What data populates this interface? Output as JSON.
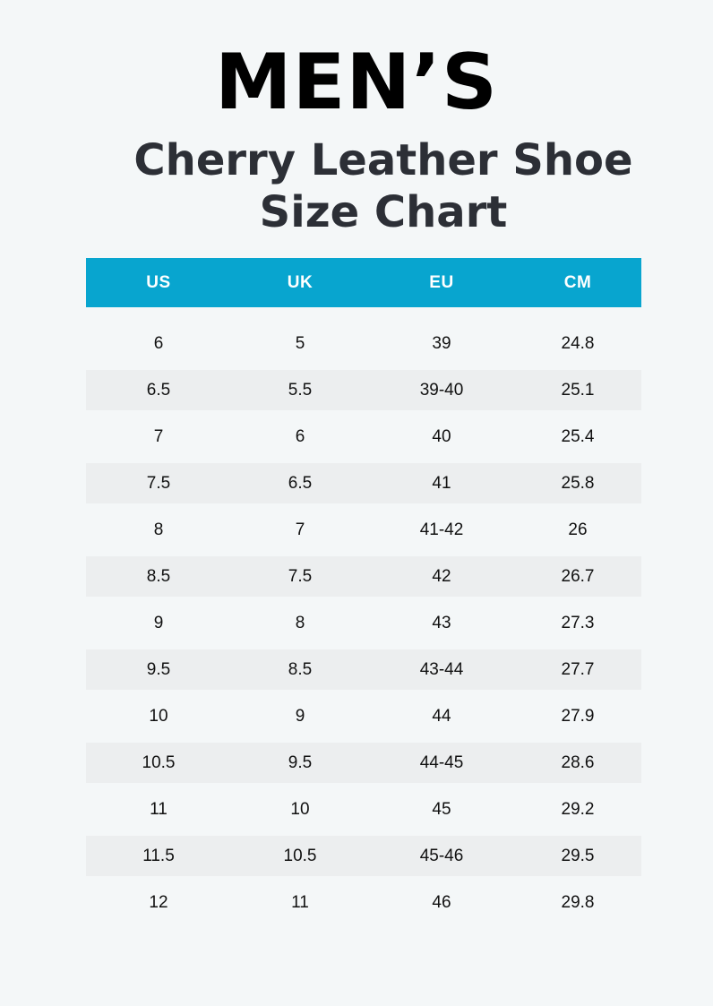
{
  "title": "MEN’S",
  "subtitle": {
    "line1": "Cherry Leather Shoe",
    "line2": "Size Chart"
  },
  "colors": {
    "header_bg": "#08a5cf",
    "page_bg": "#f4f7f8",
    "alt_row_bg": "#eceeef"
  },
  "table": {
    "headers": [
      "US",
      "UK",
      "EU",
      "CM"
    ],
    "rows": [
      [
        "6",
        "5",
        "39",
        "24.8"
      ],
      [
        "6.5",
        "5.5",
        "39-40",
        "25.1"
      ],
      [
        "7",
        "6",
        "40",
        "25.4"
      ],
      [
        "7.5",
        "6.5",
        "41",
        "25.8"
      ],
      [
        "8",
        "7",
        "41-42",
        "26"
      ],
      [
        "8.5",
        "7.5",
        "42",
        "26.7"
      ],
      [
        "9",
        "8",
        "43",
        "27.3"
      ],
      [
        "9.5",
        "8.5",
        "43-44",
        "27.7"
      ],
      [
        "10",
        "9",
        "44",
        "27.9"
      ],
      [
        "10.5",
        "9.5",
        "44-45",
        "28.6"
      ],
      [
        "11",
        "10",
        "45",
        "29.2"
      ],
      [
        "11.5",
        "10.5",
        "45-46",
        "29.5"
      ],
      [
        "12",
        "11",
        "46",
        "29.8"
      ]
    ]
  }
}
